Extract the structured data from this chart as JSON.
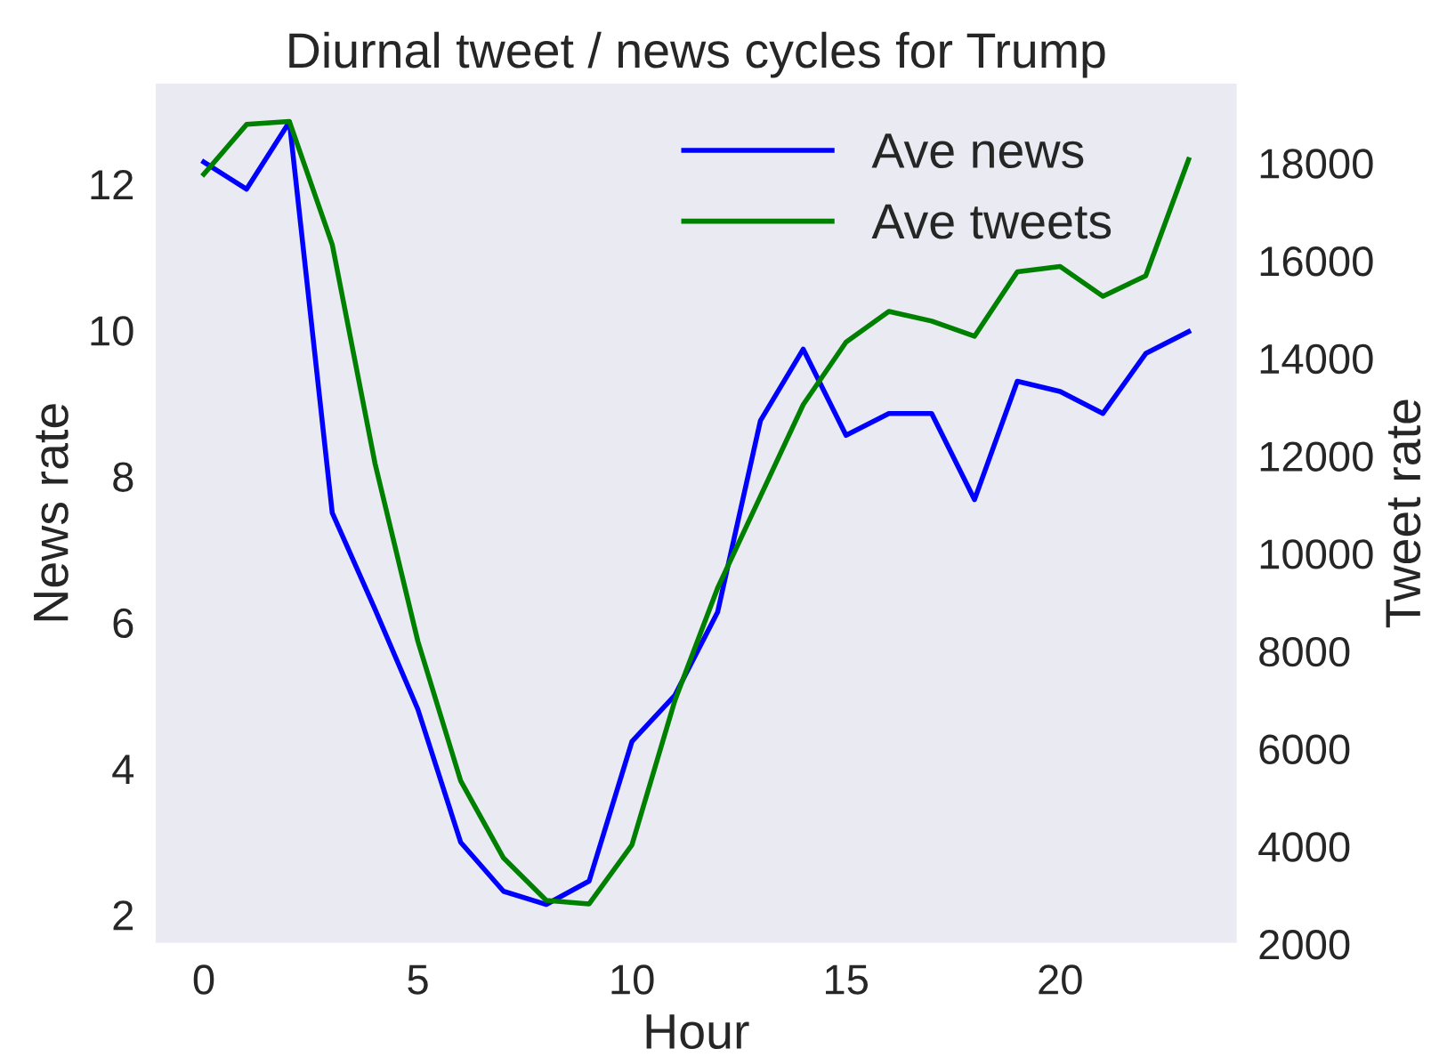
{
  "chart_data": {
    "type": "line",
    "title": "Diurnal tweet / news cycles for Trump",
    "xlabel": "Hour",
    "ylabel": "News rate",
    "y2label": "Tweet rate",
    "x": [
      0,
      1,
      2,
      3,
      4,
      5,
      6,
      7,
      8,
      9,
      10,
      11,
      12,
      13,
      14,
      15,
      16,
      17,
      18,
      19,
      20,
      21,
      22,
      23
    ],
    "series": [
      {
        "name": "Ave news",
        "color": "#0000ff",
        "values": [
          12.3,
          11.93,
          12.85,
          7.5,
          6.18,
          4.81,
          2.99,
          2.32,
          2.14,
          2.46,
          4.37,
          5.0,
          6.14,
          8.76,
          9.74,
          8.56,
          8.86,
          8.86,
          7.68,
          9.3,
          9.16,
          8.86,
          9.68,
          9.98
        ]
      },
      {
        "name": "Ave tweets",
        "color": "#008000",
        "axis": "y2",
        "values": [
          17770,
          18790,
          18850,
          16330,
          11840,
          8200,
          5340,
          3760,
          2890,
          2820,
          4030,
          6980,
          9290,
          11170,
          13050,
          14330,
          14960,
          14760,
          14450,
          15770,
          15880,
          15270,
          15690,
          18070
        ]
      }
    ],
    "xlim": [
      -1.15,
      24.15
    ],
    "xticks": [
      0,
      5,
      10,
      15,
      20
    ],
    "ylim": [
      1.6,
      13.39
    ],
    "yticks": [
      2,
      4,
      6,
      8,
      10,
      12
    ],
    "y2lim": [
      2000,
      19650
    ],
    "y2ticks": [
      2000,
      4000,
      6000,
      8000,
      10000,
      12000,
      14000,
      16000,
      18000
    ],
    "grid": false,
    "legend": "top right"
  }
}
